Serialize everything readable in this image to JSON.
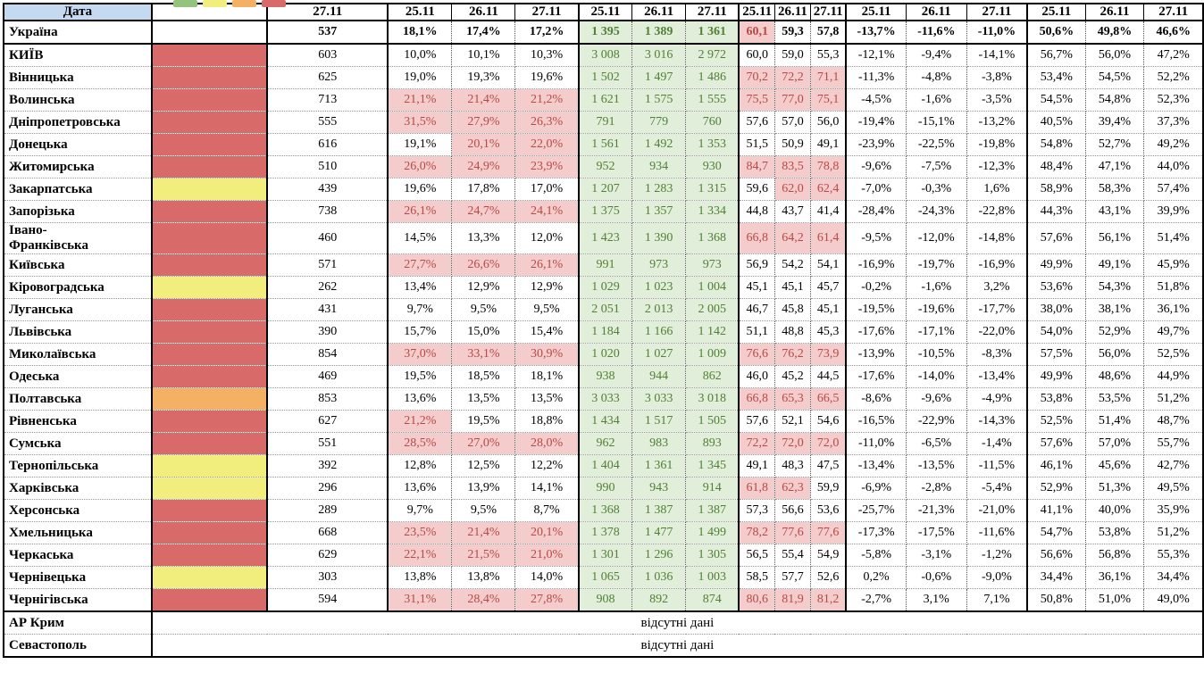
{
  "colors": {
    "red": "#d96a6a",
    "yellow": "#f1ee7d",
    "orange": "#f4b163",
    "green": "#93c47d",
    "header_blue": "#c5d9f1",
    "flag_bg": "#f4cccc",
    "flag_text": "#b84946",
    "abs_bg": "#e1eed9",
    "abs_text": "#507f35"
  },
  "chart_data": {
    "type": "table",
    "title": "",
    "legend_order": [
      "green",
      "yellow",
      "orange",
      "red"
    ],
    "header": {
      "date_label": "Дата",
      "count_date": "27.11",
      "group_dates": [
        "25.11",
        "26.11",
        "27.11"
      ],
      "groups": 5
    },
    "no_data": {
      "label": "відсутні дані",
      "rows": [
        "АР Крим",
        "Севастополь"
      ]
    },
    "rows": [
      {
        "name": "Україна",
        "status": "none",
        "count": "537",
        "pct": [
          "18,1%",
          "17,4%",
          "17,2%"
        ],
        "pct_flags": [
          0,
          0,
          0
        ],
        "abs": [
          "1 395",
          "1 389",
          "1 361"
        ],
        "load": [
          "60,1",
          "59,3",
          "57,8"
        ],
        "load_flags": [
          1,
          0,
          0
        ],
        "change": [
          "-13,7%",
          "-11,6%",
          "-11,0%"
        ],
        "share": [
          "50,6%",
          "49,8%",
          "46,6%"
        ]
      },
      {
        "name": "КИЇВ",
        "status": "red",
        "count": "603",
        "pct": [
          "10,0%",
          "10,1%",
          "10,3%"
        ],
        "pct_flags": [
          0,
          0,
          0
        ],
        "abs": [
          "3 008",
          "3 016",
          "2 972"
        ],
        "load": [
          "60,0",
          "59,0",
          "55,3"
        ],
        "load_flags": [
          0,
          0,
          0
        ],
        "change": [
          "-12,1%",
          "-9,4%",
          "-14,1%"
        ],
        "share": [
          "56,7%",
          "56,0%",
          "47,2%"
        ]
      },
      {
        "name": "Вінницька",
        "status": "red",
        "count": "625",
        "pct": [
          "19,0%",
          "19,3%",
          "19,6%"
        ],
        "pct_flags": [
          0,
          0,
          0
        ],
        "abs": [
          "1 502",
          "1 497",
          "1 486"
        ],
        "load": [
          "70,2",
          "72,2",
          "71,1"
        ],
        "load_flags": [
          1,
          1,
          1
        ],
        "change": [
          "-11,3%",
          "-4,8%",
          "-3,8%"
        ],
        "share": [
          "53,4%",
          "54,5%",
          "52,2%"
        ]
      },
      {
        "name": "Волинська",
        "status": "red",
        "count": "713",
        "pct": [
          "21,1%",
          "21,4%",
          "21,2%"
        ],
        "pct_flags": [
          1,
          1,
          1
        ],
        "abs": [
          "1 621",
          "1 575",
          "1 555"
        ],
        "load": [
          "75,5",
          "77,0",
          "75,1"
        ],
        "load_flags": [
          1,
          1,
          1
        ],
        "change": [
          "-4,5%",
          "-1,6%",
          "-3,5%"
        ],
        "share": [
          "54,5%",
          "54,8%",
          "52,3%"
        ]
      },
      {
        "name": "Дніпропетровська",
        "status": "red",
        "count": "555",
        "pct": [
          "31,5%",
          "27,9%",
          "26,3%"
        ],
        "pct_flags": [
          1,
          1,
          1
        ],
        "abs": [
          "791",
          "779",
          "760"
        ],
        "load": [
          "57,6",
          "57,0",
          "56,0"
        ],
        "load_flags": [
          0,
          0,
          0
        ],
        "change": [
          "-19,4%",
          "-15,1%",
          "-13,2%"
        ],
        "share": [
          "40,5%",
          "39,4%",
          "37,3%"
        ]
      },
      {
        "name": "Донецька",
        "status": "red",
        "count": "616",
        "pct": [
          "19,1%",
          "20,1%",
          "22,0%"
        ],
        "pct_flags": [
          0,
          1,
          1
        ],
        "abs": [
          "1 561",
          "1 492",
          "1 353"
        ],
        "load": [
          "51,5",
          "50,9",
          "49,1"
        ],
        "load_flags": [
          0,
          0,
          0
        ],
        "change": [
          "-23,9%",
          "-22,5%",
          "-19,8%"
        ],
        "share": [
          "54,8%",
          "52,7%",
          "49,2%"
        ]
      },
      {
        "name": "Житомирська",
        "status": "red",
        "count": "510",
        "pct": [
          "26,0%",
          "24,9%",
          "23,9%"
        ],
        "pct_flags": [
          1,
          1,
          1
        ],
        "abs": [
          "952",
          "934",
          "930"
        ],
        "load": [
          "84,7",
          "83,5",
          "78,8"
        ],
        "load_flags": [
          1,
          1,
          1
        ],
        "change": [
          "-9,6%",
          "-7,5%",
          "-12,3%"
        ],
        "share": [
          "48,4%",
          "47,1%",
          "44,0%"
        ]
      },
      {
        "name": "Закарпатська",
        "status": "yellow",
        "count": "439",
        "pct": [
          "19,6%",
          "17,8%",
          "17,0%"
        ],
        "pct_flags": [
          0,
          0,
          0
        ],
        "abs": [
          "1 207",
          "1 283",
          "1 315"
        ],
        "load": [
          "59,6",
          "62,0",
          "62,4"
        ],
        "load_flags": [
          0,
          1,
          1
        ],
        "change": [
          "-7,0%",
          "-0,3%",
          "1,6%"
        ],
        "share": [
          "58,9%",
          "58,3%",
          "57,4%"
        ]
      },
      {
        "name": "Запорізька",
        "status": "red",
        "count": "738",
        "pct": [
          "26,1%",
          "24,7%",
          "24,1%"
        ],
        "pct_flags": [
          1,
          1,
          1
        ],
        "abs": [
          "1 375",
          "1 357",
          "1 334"
        ],
        "load": [
          "44,8",
          "43,7",
          "41,4"
        ],
        "load_flags": [
          0,
          0,
          0
        ],
        "change": [
          "-28,4%",
          "-24,3%",
          "-22,8%"
        ],
        "share": [
          "44,3%",
          "43,1%",
          "39,9%"
        ]
      },
      {
        "name": "Івано-Франківська",
        "status": "red",
        "count": "460",
        "pct": [
          "14,5%",
          "13,3%",
          "12,0%"
        ],
        "pct_flags": [
          0,
          0,
          0
        ],
        "abs": [
          "1 423",
          "1 390",
          "1 368"
        ],
        "load": [
          "66,8",
          "64,2",
          "61,4"
        ],
        "load_flags": [
          1,
          1,
          1
        ],
        "change": [
          "-9,5%",
          "-12,0%",
          "-14,8%"
        ],
        "share": [
          "57,6%",
          "56,1%",
          "51,4%"
        ]
      },
      {
        "name": "Київська",
        "status": "red",
        "count": "571",
        "pct": [
          "27,7%",
          "26,6%",
          "26,1%"
        ],
        "pct_flags": [
          1,
          1,
          1
        ],
        "abs": [
          "991",
          "973",
          "973"
        ],
        "load": [
          "56,9",
          "54,2",
          "54,1"
        ],
        "load_flags": [
          0,
          0,
          0
        ],
        "change": [
          "-16,9%",
          "-19,7%",
          "-16,9%"
        ],
        "share": [
          "49,9%",
          "49,1%",
          "45,9%"
        ]
      },
      {
        "name": "Кіровоградська",
        "status": "yellow",
        "count": "262",
        "pct": [
          "13,4%",
          "12,9%",
          "12,9%"
        ],
        "pct_flags": [
          0,
          0,
          0
        ],
        "abs": [
          "1 029",
          "1 023",
          "1 004"
        ],
        "load": [
          "45,1",
          "45,1",
          "45,7"
        ],
        "load_flags": [
          0,
          0,
          0
        ],
        "change": [
          "-0,2%",
          "-1,6%",
          "3,2%"
        ],
        "share": [
          "53,6%",
          "54,3%",
          "51,8%"
        ]
      },
      {
        "name": "Луганська",
        "status": "red",
        "count": "431",
        "pct": [
          "9,7%",
          "9,5%",
          "9,5%"
        ],
        "pct_flags": [
          0,
          0,
          0
        ],
        "abs": [
          "2 051",
          "2 013",
          "2 005"
        ],
        "load": [
          "46,7",
          "45,8",
          "45,1"
        ],
        "load_flags": [
          0,
          0,
          0
        ],
        "change": [
          "-19,5%",
          "-19,6%",
          "-17,7%"
        ],
        "share": [
          "38,0%",
          "38,1%",
          "36,1%"
        ]
      },
      {
        "name": "Львівська",
        "status": "red",
        "count": "390",
        "pct": [
          "15,7%",
          "15,0%",
          "15,4%"
        ],
        "pct_flags": [
          0,
          0,
          0
        ],
        "abs": [
          "1 184",
          "1 166",
          "1 142"
        ],
        "load": [
          "51,1",
          "48,8",
          "45,3"
        ],
        "load_flags": [
          0,
          0,
          0
        ],
        "change": [
          "-17,6%",
          "-17,1%",
          "-22,0%"
        ],
        "share": [
          "54,0%",
          "52,9%",
          "49,7%"
        ]
      },
      {
        "name": "Миколаївська",
        "status": "red",
        "count": "854",
        "pct": [
          "37,0%",
          "33,1%",
          "30,9%"
        ],
        "pct_flags": [
          1,
          1,
          1
        ],
        "abs": [
          "1 020",
          "1 027",
          "1 009"
        ],
        "load": [
          "76,6",
          "76,2",
          "73,9"
        ],
        "load_flags": [
          1,
          1,
          1
        ],
        "change": [
          "-13,9%",
          "-10,5%",
          "-8,3%"
        ],
        "share": [
          "57,5%",
          "56,0%",
          "52,5%"
        ]
      },
      {
        "name": "Одеська",
        "status": "red",
        "count": "469",
        "pct": [
          "19,5%",
          "18,5%",
          "18,1%"
        ],
        "pct_flags": [
          0,
          0,
          0
        ],
        "abs": [
          "938",
          "944",
          "862"
        ],
        "load": [
          "46,0",
          "45,2",
          "44,5"
        ],
        "load_flags": [
          0,
          0,
          0
        ],
        "change": [
          "-17,6%",
          "-14,0%",
          "-13,4%"
        ],
        "share": [
          "49,9%",
          "48,6%",
          "44,9%"
        ]
      },
      {
        "name": "Полтавська",
        "status": "orange",
        "count": "853",
        "pct": [
          "13,6%",
          "13,5%",
          "13,5%"
        ],
        "pct_flags": [
          0,
          0,
          0
        ],
        "abs": [
          "3 033",
          "3 033",
          "3 018"
        ],
        "load": [
          "66,8",
          "65,3",
          "66,5"
        ],
        "load_flags": [
          1,
          1,
          1
        ],
        "change": [
          "-8,6%",
          "-9,6%",
          "-4,9%"
        ],
        "share": [
          "53,8%",
          "53,5%",
          "51,2%"
        ]
      },
      {
        "name": "Рівненська",
        "status": "red",
        "count": "627",
        "pct": [
          "21,2%",
          "19,5%",
          "18,8%"
        ],
        "pct_flags": [
          1,
          0,
          0
        ],
        "abs": [
          "1 434",
          "1 517",
          "1 505"
        ],
        "load": [
          "57,6",
          "52,1",
          "54,6"
        ],
        "load_flags": [
          0,
          0,
          0
        ],
        "change": [
          "-16,5%",
          "-22,9%",
          "-14,3%"
        ],
        "share": [
          "52,5%",
          "51,4%",
          "48,7%"
        ]
      },
      {
        "name": "Сумська",
        "status": "red",
        "count": "551",
        "pct": [
          "28,5%",
          "27,0%",
          "28,0%"
        ],
        "pct_flags": [
          1,
          1,
          1
        ],
        "abs": [
          "962",
          "983",
          "893"
        ],
        "load": [
          "72,2",
          "72,0",
          "72,0"
        ],
        "load_flags": [
          1,
          1,
          1
        ],
        "change": [
          "-11,0%",
          "-6,5%",
          "-1,4%"
        ],
        "share": [
          "57,6%",
          "57,0%",
          "55,7%"
        ]
      },
      {
        "name": "Тернопільська",
        "status": "yellow",
        "count": "392",
        "pct": [
          "12,8%",
          "12,5%",
          "12,2%"
        ],
        "pct_flags": [
          0,
          0,
          0
        ],
        "abs": [
          "1 404",
          "1 361",
          "1 345"
        ],
        "load": [
          "49,1",
          "48,3",
          "47,5"
        ],
        "load_flags": [
          0,
          0,
          0
        ],
        "change": [
          "-13,4%",
          "-13,5%",
          "-11,5%"
        ],
        "share": [
          "46,1%",
          "45,6%",
          "42,7%"
        ]
      },
      {
        "name": "Харківська",
        "status": "yellow",
        "count": "296",
        "pct": [
          "13,6%",
          "13,9%",
          "14,1%"
        ],
        "pct_flags": [
          0,
          0,
          0
        ],
        "abs": [
          "990",
          "943",
          "914"
        ],
        "load": [
          "61,8",
          "62,3",
          "59,9"
        ],
        "load_flags": [
          1,
          1,
          0
        ],
        "change": [
          "-6,9%",
          "-2,8%",
          "-5,4%"
        ],
        "share": [
          "52,9%",
          "51,3%",
          "49,5%"
        ]
      },
      {
        "name": "Херсонська",
        "status": "red",
        "count": "289",
        "pct": [
          "9,7%",
          "9,5%",
          "8,7%"
        ],
        "pct_flags": [
          0,
          0,
          0
        ],
        "abs": [
          "1 368",
          "1 387",
          "1 387"
        ],
        "load": [
          "57,3",
          "56,6",
          "53,6"
        ],
        "load_flags": [
          0,
          0,
          0
        ],
        "change": [
          "-25,7%",
          "-21,3%",
          "-21,0%"
        ],
        "share": [
          "41,1%",
          "40,0%",
          "35,9%"
        ]
      },
      {
        "name": "Хмельницька",
        "status": "red",
        "count": "668",
        "pct": [
          "23,5%",
          "21,4%",
          "20,1%"
        ],
        "pct_flags": [
          1,
          1,
          1
        ],
        "abs": [
          "1 378",
          "1 477",
          "1 499"
        ],
        "load": [
          "78,2",
          "77,6",
          "77,6"
        ],
        "load_flags": [
          1,
          1,
          1
        ],
        "change": [
          "-17,3%",
          "-17,5%",
          "-11,6%"
        ],
        "share": [
          "54,7%",
          "53,8%",
          "51,2%"
        ]
      },
      {
        "name": "Черкаська",
        "status": "red",
        "count": "629",
        "pct": [
          "22,1%",
          "21,5%",
          "21,0%"
        ],
        "pct_flags": [
          1,
          1,
          1
        ],
        "abs": [
          "1 301",
          "1 296",
          "1 305"
        ],
        "load": [
          "56,5",
          "55,4",
          "54,9"
        ],
        "load_flags": [
          0,
          0,
          0
        ],
        "change": [
          "-5,8%",
          "-3,1%",
          "-1,2%"
        ],
        "share": [
          "56,6%",
          "56,8%",
          "55,3%"
        ]
      },
      {
        "name": "Чернівецька",
        "status": "yellow",
        "count": "303",
        "pct": [
          "13,8%",
          "13,8%",
          "14,0%"
        ],
        "pct_flags": [
          0,
          0,
          0
        ],
        "abs": [
          "1 065",
          "1 036",
          "1 003"
        ],
        "load": [
          "58,5",
          "57,7",
          "52,6"
        ],
        "load_flags": [
          0,
          0,
          0
        ],
        "change": [
          "0,2%",
          "-0,6%",
          "-9,0%"
        ],
        "share": [
          "34,4%",
          "36,1%",
          "34,4%"
        ]
      },
      {
        "name": "Чернігівська",
        "status": "red",
        "count": "594",
        "pct": [
          "31,1%",
          "28,4%",
          "27,8%"
        ],
        "pct_flags": [
          1,
          1,
          1
        ],
        "abs": [
          "908",
          "892",
          "874"
        ],
        "load": [
          "80,6",
          "81,9",
          "81,2"
        ],
        "load_flags": [
          1,
          1,
          1
        ],
        "change": [
          "-2,7%",
          "3,1%",
          "7,1%"
        ],
        "share": [
          "50,8%",
          "51,0%",
          "49,0%"
        ]
      }
    ]
  }
}
